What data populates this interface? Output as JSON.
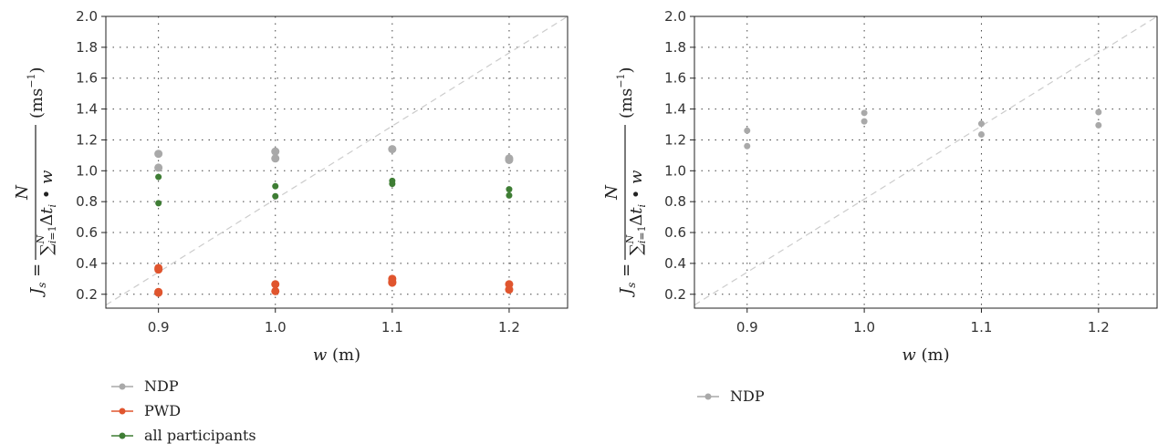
{
  "chart_data": [
    {
      "type": "scatter",
      "title": "",
      "xlabel": "w (m)",
      "ylabel": "J_s = N / (Σ_{i=1}^{N} Δt_i • w) (ms^-1)",
      "xlim": [
        0.855,
        1.25
      ],
      "ylim": [
        0.11,
        2.0
      ],
      "xticks": [
        "0.9",
        "1.0",
        "1.1",
        "1.2"
      ],
      "yticks": [
        "0.2",
        "0.4",
        "0.6",
        "0.8",
        "1.0",
        "1.2",
        "1.4",
        "1.6",
        "1.8",
        "2.0"
      ],
      "grid": true,
      "legend_position": "below",
      "reference_line": {
        "from": [
          0.855,
          0.13
        ],
        "to": [
          1.25,
          2.0
        ]
      },
      "series": [
        {
          "name": "NDP",
          "color": "#a9a9a9",
          "marker_size": 4.5,
          "points": [
            [
              0.9,
              1.11
            ],
            [
              0.9,
              1.02
            ],
            [
              1.0,
              1.125
            ],
            [
              1.0,
              1.08
            ],
            [
              1.1,
              1.14
            ],
            [
              1.2,
              1.08
            ],
            [
              1.2,
              1.07
            ]
          ]
        },
        {
          "name": "PWD",
          "color": "#e0552e",
          "marker_size": 4.5,
          "points": [
            [
              0.9,
              0.37
            ],
            [
              0.9,
              0.36
            ],
            [
              0.9,
              0.215
            ],
            [
              0.9,
              0.21
            ],
            [
              1.0,
              0.265
            ],
            [
              1.0,
              0.22
            ],
            [
              1.1,
              0.3
            ],
            [
              1.1,
              0.28
            ],
            [
              1.1,
              0.275
            ],
            [
              1.2,
              0.265
            ],
            [
              1.2,
              0.23
            ]
          ]
        },
        {
          "name": "all participants",
          "color": "#3e7d34",
          "marker_size": 3.5,
          "points": [
            [
              0.9,
              0.96
            ],
            [
              0.9,
              0.79
            ],
            [
              1.0,
              0.9
            ],
            [
              1.0,
              0.835
            ],
            [
              1.1,
              0.935
            ],
            [
              1.1,
              0.915
            ],
            [
              1.2,
              0.88
            ],
            [
              1.2,
              0.84
            ]
          ]
        }
      ]
    },
    {
      "type": "scatter",
      "title": "",
      "xlabel": "w (m)",
      "ylabel": "J_s = N / (Σ_{i=1}^{N} Δt_i • w) (ms^-1)",
      "xlim": [
        0.855,
        1.25
      ],
      "ylim": [
        0.11,
        2.0
      ],
      "xticks": [
        "0.9",
        "1.0",
        "1.1",
        "1.2"
      ],
      "yticks": [
        "0.2",
        "0.4",
        "0.6",
        "0.8",
        "1.0",
        "1.2",
        "1.4",
        "1.6",
        "1.8",
        "2.0"
      ],
      "grid": true,
      "legend_position": "below",
      "reference_line": {
        "from": [
          0.855,
          0.13
        ],
        "to": [
          1.25,
          2.0
        ]
      },
      "series": [
        {
          "name": "NDP",
          "color": "#a9a9a9",
          "marker_size": 3.5,
          "points": [
            [
              0.9,
              1.26
            ],
            [
              0.9,
              1.16
            ],
            [
              1.0,
              1.375
            ],
            [
              1.0,
              1.32
            ],
            [
              1.1,
              1.305
            ],
            [
              1.1,
              1.235
            ],
            [
              1.2,
              1.38
            ],
            [
              1.2,
              1.295
            ]
          ]
        }
      ]
    }
  ]
}
